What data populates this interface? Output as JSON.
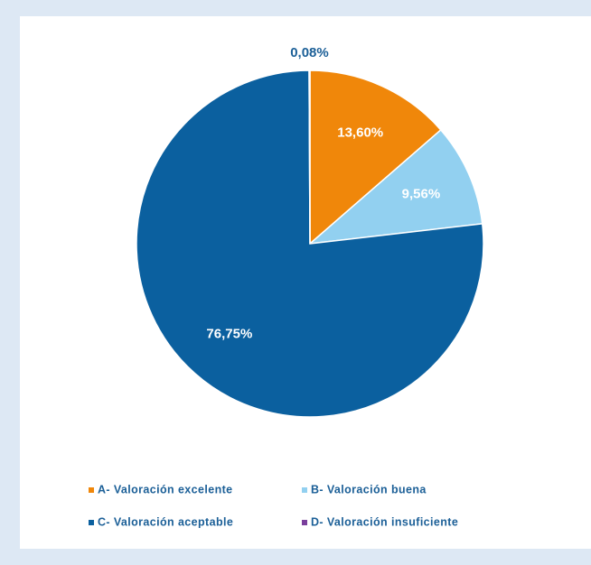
{
  "chart_data": {
    "type": "pie",
    "categories": [
      "A- Valoración excelente",
      "B- Valoración buena",
      "C- Valoración aceptable",
      "D- Valoración insuficiente"
    ],
    "values": [
      13.6,
      9.56,
      76.75,
      0.08
    ],
    "value_labels": [
      "13,60%",
      "9,56%",
      "76,75%",
      "0,08%"
    ],
    "colors": [
      "#f0870a",
      "#92d0f0",
      "#0b609f",
      "#7a3f9c"
    ]
  }
}
